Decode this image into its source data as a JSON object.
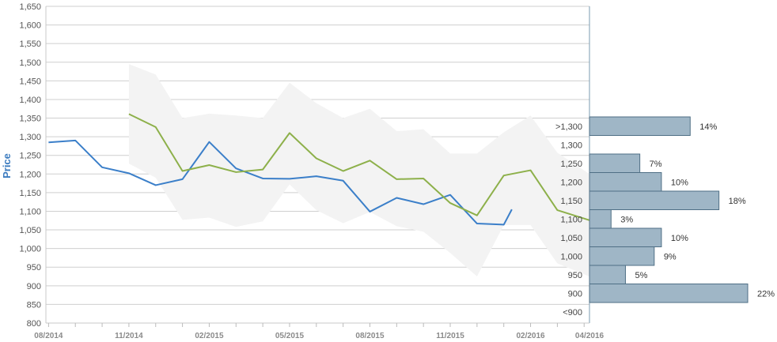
{
  "chart_data": {
    "type": "line",
    "ylabel": "Price",
    "ylim": [
      800,
      1650
    ],
    "y_ticks": [
      800,
      850,
      900,
      950,
      1000,
      1050,
      1100,
      1150,
      1200,
      1250,
      1300,
      1350,
      1400,
      1450,
      1500,
      1550,
      1600,
      1650
    ],
    "y_tick_labels": [
      "800",
      "850",
      "900",
      "950",
      "1,000",
      "1,050",
      "1,100",
      "1,150",
      "1,200",
      "1,250",
      "1,300",
      "1,350",
      "1,400",
      "1,450",
      "1,500",
      "1,550",
      "1,600",
      "1,650"
    ],
    "x_tick_labels": [
      {
        "label": "08/2014",
        "month": 0
      },
      {
        "label": "11/2014",
        "month": 3
      },
      {
        "label": "02/2015",
        "month": 6
      },
      {
        "label": "05/2015",
        "month": 9
      },
      {
        "label": "08/2015",
        "month": 12
      },
      {
        "label": "11/2015",
        "month": 15
      },
      {
        "label": "02/2016",
        "month": 18
      },
      {
        "label": "04/2016",
        "month": 20.2
      }
    ],
    "xlim": [
      -0.1,
      20.2
    ],
    "grid": true,
    "series": [
      {
        "color": "#3b7fc9",
        "points": [
          [
            0,
            1285
          ],
          [
            1,
            1290
          ],
          [
            2,
            1218
          ],
          [
            3,
            1202
          ],
          [
            4,
            1170
          ],
          [
            5,
            1186
          ],
          [
            6,
            1286
          ],
          [
            7,
            1215
          ],
          [
            8,
            1188
          ],
          [
            9,
            1187
          ],
          [
            10,
            1194
          ],
          [
            11,
            1182
          ],
          [
            12,
            1099
          ],
          [
            13,
            1136
          ],
          [
            14,
            1119
          ],
          [
            15,
            1144
          ],
          [
            16,
            1067
          ],
          [
            17,
            1064
          ],
          [
            17.3,
            1105
          ]
        ]
      },
      {
        "color": "#8db04a",
        "points": [
          [
            3,
            1361
          ],
          [
            4,
            1326
          ],
          [
            5,
            1208
          ],
          [
            6,
            1224
          ],
          [
            7,
            1205
          ],
          [
            8,
            1212
          ],
          [
            9,
            1310
          ],
          [
            10,
            1242
          ],
          [
            11,
            1208
          ],
          [
            12,
            1236
          ],
          [
            13,
            1186
          ],
          [
            14,
            1188
          ],
          [
            15,
            1122
          ],
          [
            16,
            1089
          ],
          [
            17,
            1196
          ],
          [
            18,
            1210
          ],
          [
            19,
            1103
          ],
          [
            20.2,
            1076
          ]
        ]
      }
    ],
    "band": {
      "color": "#f3f3f3",
      "upper": [
        [
          3,
          1495
        ],
        [
          4,
          1467
        ],
        [
          5,
          1350
        ],
        [
          6,
          1362
        ],
        [
          7,
          1357
        ],
        [
          8,
          1350
        ],
        [
          9,
          1445
        ],
        [
          10,
          1390
        ],
        [
          11,
          1350
        ],
        [
          12,
          1375
        ],
        [
          13,
          1315
        ],
        [
          14,
          1320
        ],
        [
          15,
          1255
        ],
        [
          16,
          1255
        ],
        [
          17,
          1312
        ],
        [
          18,
          1357
        ],
        [
          19,
          1257
        ],
        [
          20.2,
          1200
        ]
      ],
      "lower": [
        [
          3,
          1228
        ],
        [
          4,
          1190
        ],
        [
          5,
          1077
        ],
        [
          6,
          1083
        ],
        [
          7,
          1058
        ],
        [
          8,
          1073
        ],
        [
          9,
          1172
        ],
        [
          10,
          1103
        ],
        [
          11,
          1068
        ],
        [
          12,
          1098
        ],
        [
          13,
          1060
        ],
        [
          14,
          1045
        ],
        [
          15,
          988
        ],
        [
          16,
          925
        ],
        [
          17,
          1063
        ],
        [
          18,
          1063
        ],
        [
          19,
          960
        ],
        [
          20.2,
          925
        ]
      ]
    },
    "histogram": {
      "color": "#9fb6c6",
      "bins": [
        {
          "label": ">1,300",
          "low": 1300,
          "high": 1350,
          "percent": 14,
          "percent_label": "14%"
        },
        {
          "label": "1,300",
          "low": 1250,
          "high": 1300,
          "percent": 0,
          "percent_label": ""
        },
        {
          "label": "1,250",
          "low": 1200,
          "high": 1250,
          "percent": 7,
          "percent_label": "7%"
        },
        {
          "label": "1,200",
          "low": 1150,
          "high": 1200,
          "percent": 10,
          "percent_label": "10%"
        },
        {
          "label": "1,150",
          "low": 1100,
          "high": 1150,
          "percent": 18,
          "percent_label": "18%"
        },
        {
          "label": "1,100",
          "low": 1050,
          "high": 1100,
          "percent": 3,
          "percent_label": "3%"
        },
        {
          "label": "1,050",
          "low": 1000,
          "high": 1050,
          "percent": 10,
          "percent_label": "10%"
        },
        {
          "label": "1,000",
          "low": 950,
          "high": 1000,
          "percent": 9,
          "percent_label": "9%"
        },
        {
          "label": "950",
          "low": 900,
          "high": 950,
          "percent": 5,
          "percent_label": "5%"
        },
        {
          "label": "900",
          "low": 850,
          "high": 900,
          "percent": 22,
          "percent_label": "22%"
        },
        {
          "label": "<900",
          "low": null,
          "high": null,
          "percent": 0,
          "percent_label": ""
        }
      ]
    }
  }
}
